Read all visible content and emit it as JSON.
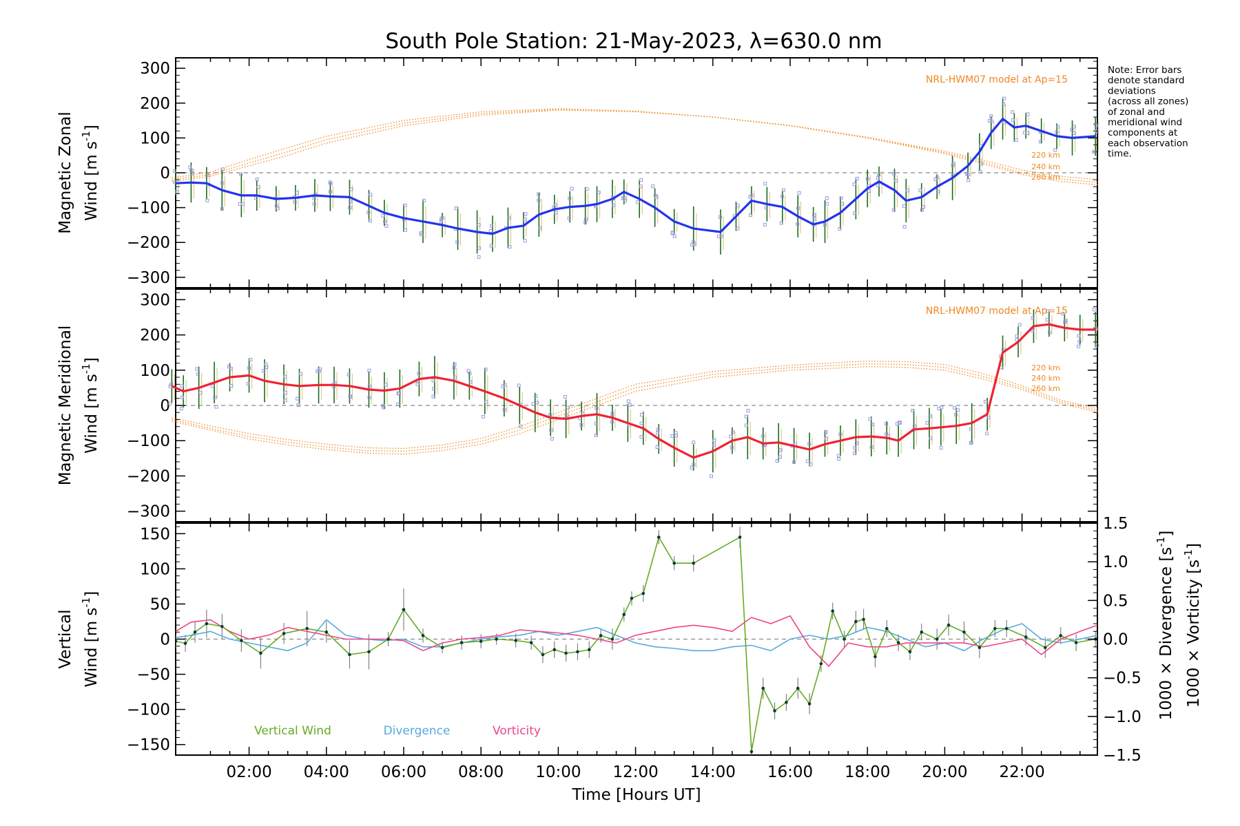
{
  "title": "South Pole Station: 21-May-2023, λ=630.0 nm",
  "note": [
    "Note: Error bars",
    "denote standard",
    "deviations",
    "(across all zones)",
    "of zonal and",
    "meridional wind",
    "components at",
    "each observation",
    "time."
  ],
  "colors": {
    "zonal": "#2233ee",
    "meridional": "#ee2233",
    "vertical": "#66aa22",
    "divergence": "#55aadd",
    "vorticity": "#ee4488",
    "model": "#ee8822",
    "errbar": "#1a6b1a",
    "errbar_mer": "#888888"
  },
  "chart_data": [
    {
      "type": "line",
      "panel": "zonal",
      "ylabel_line1": "Magnetic Zonal",
      "ylabel_line2": "Wind [m s",
      "ylabel_sup": "-1",
      "ylabel_end": "]",
      "ylim": [
        -330,
        330
      ],
      "yticks": [
        -300,
        -200,
        -100,
        0,
        100,
        200,
        300
      ],
      "model_label": "NRL-HWM07 model at Ap=15",
      "model_altitudes": [
        "220 km",
        "240 km",
        "260 km"
      ],
      "x": [
        0.1,
        0.5,
        0.9,
        1.3,
        1.8,
        2.2,
        2.7,
        3.2,
        3.7,
        4.1,
        4.6,
        5.1,
        5.5,
        6.0,
        6.5,
        7.0,
        7.4,
        7.9,
        8.3,
        8.7,
        9.1,
        9.5,
        9.9,
        10.3,
        10.7,
        11.0,
        11.4,
        11.7,
        12.1,
        12.5,
        13.0,
        13.5,
        14.2,
        14.6,
        15.0,
        15.4,
        15.8,
        16.2,
        16.6,
        16.9,
        17.3,
        17.7,
        18.0,
        18.3,
        18.7,
        19.0,
        19.4,
        19.8,
        20.2,
        20.6,
        20.9,
        21.2,
        21.5,
        21.8,
        22.1,
        22.5,
        22.9,
        23.3,
        23.9
      ],
      "values": [
        -30,
        -28,
        -30,
        -50,
        -65,
        -65,
        -75,
        -72,
        -65,
        -68,
        -70,
        -95,
        -115,
        -130,
        -140,
        -150,
        -160,
        -170,
        -175,
        -158,
        -152,
        -120,
        -105,
        -98,
        -95,
        -90,
        -75,
        -55,
        -75,
        -100,
        -140,
        -160,
        -170,
        -125,
        -80,
        -90,
        -98,
        -125,
        -148,
        -140,
        -115,
        -75,
        -45,
        -25,
        -50,
        -80,
        -70,
        -40,
        -15,
        20,
        60,
        115,
        155,
        130,
        135,
        120,
        105,
        100,
        105
      ],
      "model_curves": [
        {
          "x": [
            0,
            1,
            2,
            3,
            4,
            6,
            8,
            10,
            12,
            14,
            16,
            18,
            20,
            21,
            22,
            23,
            24
          ],
          "values": [
            -25,
            -10,
            20,
            50,
            85,
            135,
            165,
            180,
            175,
            160,
            135,
            100,
            55,
            25,
            -5,
            -25,
            -35
          ]
        },
        {
          "x": [
            0,
            1,
            2,
            3,
            4,
            6,
            8,
            10,
            12,
            14,
            16,
            18,
            20,
            21,
            22,
            23,
            24
          ],
          "values": [
            -20,
            -5,
            28,
            60,
            95,
            142,
            170,
            182,
            176,
            160,
            135,
            100,
            58,
            30,
            0,
            -18,
            -28
          ]
        },
        {
          "x": [
            0,
            1,
            2,
            3,
            4,
            6,
            8,
            10,
            12,
            14,
            16,
            18,
            20,
            21,
            22,
            23,
            24
          ],
          "values": [
            -15,
            2,
            38,
            72,
            105,
            150,
            175,
            184,
            177,
            160,
            136,
            102,
            62,
            36,
            8,
            -10,
            -20
          ]
        }
      ]
    },
    {
      "type": "line",
      "panel": "meridional",
      "ylabel_line1": "Magnetic Meridional",
      "ylabel_line2": "Wind [m s",
      "ylabel_sup": "-1",
      "ylabel_end": "]",
      "ylim": [
        -330,
        330
      ],
      "yticks": [
        -300,
        -200,
        -100,
        0,
        100,
        200,
        300
      ],
      "model_label": "NRL-HWM07 model at Ap=15",
      "model_altitudes": [
        "220 km",
        "240 km",
        "260 km"
      ],
      "x": [
        0.0,
        0.3,
        0.7,
        1.1,
        1.5,
        2.0,
        2.4,
        2.9,
        3.3,
        3.8,
        4.2,
        4.6,
        5.1,
        5.5,
        5.9,
        6.4,
        6.8,
        7.3,
        7.7,
        8.1,
        8.6,
        9.0,
        9.4,
        9.8,
        10.2,
        10.6,
        11.0,
        11.4,
        11.8,
        12.2,
        12.6,
        13.0,
        13.5,
        14.0,
        14.5,
        14.9,
        15.3,
        15.7,
        16.1,
        16.5,
        16.9,
        17.3,
        17.7,
        18.1,
        18.5,
        18.8,
        19.2,
        19.6,
        19.9,
        20.3,
        20.7,
        21.1,
        21.5,
        21.9,
        22.3,
        22.7,
        23.1,
        23.5,
        23.9
      ],
      "values": [
        55,
        40,
        50,
        65,
        80,
        85,
        70,
        60,
        55,
        58,
        58,
        55,
        45,
        42,
        48,
        75,
        80,
        70,
        55,
        40,
        20,
        0,
        -20,
        -35,
        -38,
        -30,
        -25,
        -35,
        -50,
        -65,
        -95,
        -120,
        -148,
        -130,
        -100,
        -90,
        -108,
        -105,
        -115,
        -125,
        -110,
        -100,
        -90,
        -88,
        -92,
        -100,
        -68,
        -65,
        -62,
        -58,
        -50,
        -25,
        150,
        180,
        225,
        230,
        220,
        215,
        215
      ],
      "model_curves": [
        {
          "x": [
            0,
            1,
            2,
            3,
            4,
            5,
            6,
            7,
            8,
            9,
            10,
            11,
            12,
            14,
            16,
            18,
            19,
            20,
            21,
            22,
            23,
            24
          ],
          "values": [
            -45,
            -70,
            -95,
            -112,
            -125,
            -135,
            -138,
            -128,
            -110,
            -80,
            -40,
            0,
            40,
            80,
            100,
            110,
            108,
            100,
            75,
            45,
            5,
            -20
          ]
        },
        {
          "x": [
            0,
            1,
            2,
            3,
            4,
            5,
            6,
            7,
            8,
            9,
            10,
            11,
            12,
            14,
            16,
            18,
            19,
            20,
            21,
            22,
            23,
            24
          ],
          "values": [
            -40,
            -65,
            -88,
            -105,
            -118,
            -128,
            -130,
            -120,
            -102,
            -70,
            -30,
            10,
            50,
            88,
            107,
            118,
            116,
            108,
            82,
            50,
            10,
            -15
          ]
        },
        {
          "x": [
            0,
            1,
            2,
            3,
            4,
            5,
            6,
            7,
            8,
            9,
            10,
            11,
            12,
            14,
            16,
            18,
            19,
            20,
            21,
            22,
            23,
            24
          ],
          "values": [
            -35,
            -58,
            -80,
            -97,
            -110,
            -120,
            -122,
            -112,
            -94,
            -60,
            -20,
            20,
            60,
            96,
            114,
            126,
            124,
            116,
            90,
            56,
            15,
            -10
          ]
        }
      ]
    },
    {
      "type": "line",
      "panel": "vertical",
      "ylabel_line1": "Vertical",
      "ylabel_line2": "Wind [m s",
      "ylabel_sup": "-1",
      "ylabel_end": "]",
      "ylim": [
        -165,
        165
      ],
      "yticks": [
        -150,
        -100,
        -50,
        0,
        50,
        100,
        150
      ],
      "y2label_div": "1000 × Divergence [s",
      "y2label_vor": "1000 × Vorticity [s",
      "y2label_sup": "-1",
      "y2label_end": "]",
      "y2lim": [
        -1.5,
        1.5
      ],
      "y2ticks": [
        -1.5,
        -1.0,
        -0.5,
        0.0,
        0.5,
        1.0,
        1.5
      ],
      "xlabel": "Time [Hours UT]",
      "xticks": [
        "02:00",
        "04:00",
        "06:00",
        "08:00",
        "10:00",
        "12:00",
        "14:00",
        "16:00",
        "18:00",
        "20:00",
        "22:00"
      ],
      "xlim": [
        0.1,
        23.95
      ],
      "legend": [
        "Vertical Wind",
        "Divergence",
        "Vorticity"
      ],
      "vertical": {
        "x": [
          0.1,
          0.35,
          0.6,
          0.9,
          1.3,
          1.8,
          2.3,
          2.9,
          3.5,
          4.0,
          4.6,
          5.1,
          5.6,
          6.0,
          6.5,
          7.0,
          7.5,
          8.0,
          8.4,
          8.9,
          9.3,
          9.6,
          9.9,
          10.2,
          10.5,
          10.8,
          11.1,
          11.4,
          11.7,
          11.9,
          12.2,
          12.6,
          13.0,
          13.5,
          14.7,
          15.0,
          15.3,
          15.6,
          15.9,
          16.2,
          16.5,
          16.8,
          17.1,
          17.4,
          17.7,
          17.9,
          18.2,
          18.5,
          18.8,
          19.1,
          19.4,
          19.8,
          20.1,
          20.5,
          20.9,
          21.3,
          21.6,
          22.1,
          22.6,
          23.0,
          23.4,
          23.9
        ],
        "values": [
          -3,
          -6,
          10,
          22,
          18,
          -2,
          -20,
          8,
          15,
          10,
          -22,
          -18,
          0,
          42,
          5,
          -12,
          -5,
          -3,
          0,
          -2,
          -5,
          -22,
          -15,
          -20,
          -18,
          -15,
          5,
          0,
          35,
          58,
          65,
          145,
          108,
          108,
          145,
          -160,
          -70,
          -102,
          -90,
          -70,
          -92,
          -35,
          40,
          0,
          25,
          28,
          -25,
          15,
          -5,
          -18,
          10,
          0,
          20,
          10,
          -12,
          15,
          15,
          3,
          -12,
          5,
          -5,
          0
        ],
        "errors": [
          10,
          12,
          15,
          20,
          18,
          16,
          22,
          15,
          25,
          15,
          20,
          25,
          10,
          30,
          10,
          8,
          10,
          10,
          8,
          10,
          10,
          12,
          12,
          12,
          12,
          12,
          10,
          15,
          10,
          10,
          12,
          10,
          10,
          12,
          15,
          12,
          15,
          12,
          12,
          15,
          15,
          12,
          12,
          12,
          15,
          15,
          15,
          12,
          12,
          12,
          12,
          15,
          15,
          15,
          15,
          12,
          12,
          12,
          15,
          12,
          12,
          12
        ]
      },
      "divergence": {
        "x": [
          0.1,
          0.5,
          1.0,
          1.5,
          2.0,
          2.5,
          3.0,
          3.5,
          4.0,
          4.5,
          5.0,
          5.5,
          6.0,
          6.5,
          7.0,
          7.5,
          8.0,
          8.5,
          9.0,
          9.5,
          10.0,
          10.5,
          11.0,
          11.5,
          12.0,
          12.5,
          13.0,
          13.5,
          14.0,
          14.5,
          15.0,
          15.5,
          16.0,
          16.5,
          17.0,
          17.5,
          18.0,
          18.5,
          19.0,
          19.5,
          20.0,
          20.5,
          21.0,
          21.5,
          22.0,
          22.5,
          23.0,
          23.5,
          23.95
        ],
        "values": [
          0.02,
          0.05,
          0.1,
          0.0,
          -0.05,
          -0.1,
          -0.15,
          -0.05,
          0.25,
          0.05,
          0.0,
          -0.02,
          0.0,
          -0.1,
          -0.1,
          -0.05,
          0.0,
          0.03,
          0.05,
          0.1,
          0.05,
          0.1,
          0.15,
          0.05,
          -0.05,
          -0.1,
          -0.12,
          -0.15,
          -0.15,
          -0.1,
          -0.08,
          -0.15,
          0.0,
          0.05,
          0.0,
          0.05,
          0.15,
          0.1,
          0.0,
          -0.1,
          -0.05,
          -0.15,
          0.0,
          0.12,
          0.2,
          0.0,
          -0.05,
          0.0,
          0.05
        ]
      },
      "vorticity": {
        "x": [
          0.1,
          0.5,
          1.0,
          1.5,
          2.0,
          2.5,
          3.0,
          3.5,
          4.0,
          4.5,
          5.0,
          5.5,
          6.0,
          6.5,
          7.0,
          7.5,
          8.0,
          8.5,
          9.0,
          9.5,
          10.0,
          10.5,
          11.0,
          11.5,
          12.0,
          12.5,
          13.0,
          13.5,
          14.0,
          14.5,
          15.0,
          15.5,
          16.0,
          16.5,
          17.0,
          17.5,
          18.0,
          18.5,
          19.0,
          19.5,
          20.0,
          20.5,
          21.0,
          21.5,
          22.0,
          22.5,
          23.0,
          23.5,
          23.95
        ],
        "values": [
          0.1,
          0.22,
          0.25,
          0.1,
          0.0,
          0.05,
          0.15,
          0.1,
          0.05,
          0.0,
          0.0,
          0.0,
          -0.02,
          -0.15,
          -0.05,
          0.0,
          0.02,
          0.05,
          0.12,
          0.1,
          0.08,
          0.05,
          0.0,
          -0.05,
          0.05,
          0.1,
          0.15,
          0.18,
          0.15,
          0.1,
          0.28,
          0.2,
          0.3,
          -0.1,
          -0.35,
          -0.05,
          -0.1,
          -0.1,
          -0.05,
          -0.05,
          -0.05,
          -0.05,
          -0.1,
          -0.05,
          0.0,
          -0.2,
          0.0,
          0.1,
          0.18
        ]
      }
    }
  ]
}
